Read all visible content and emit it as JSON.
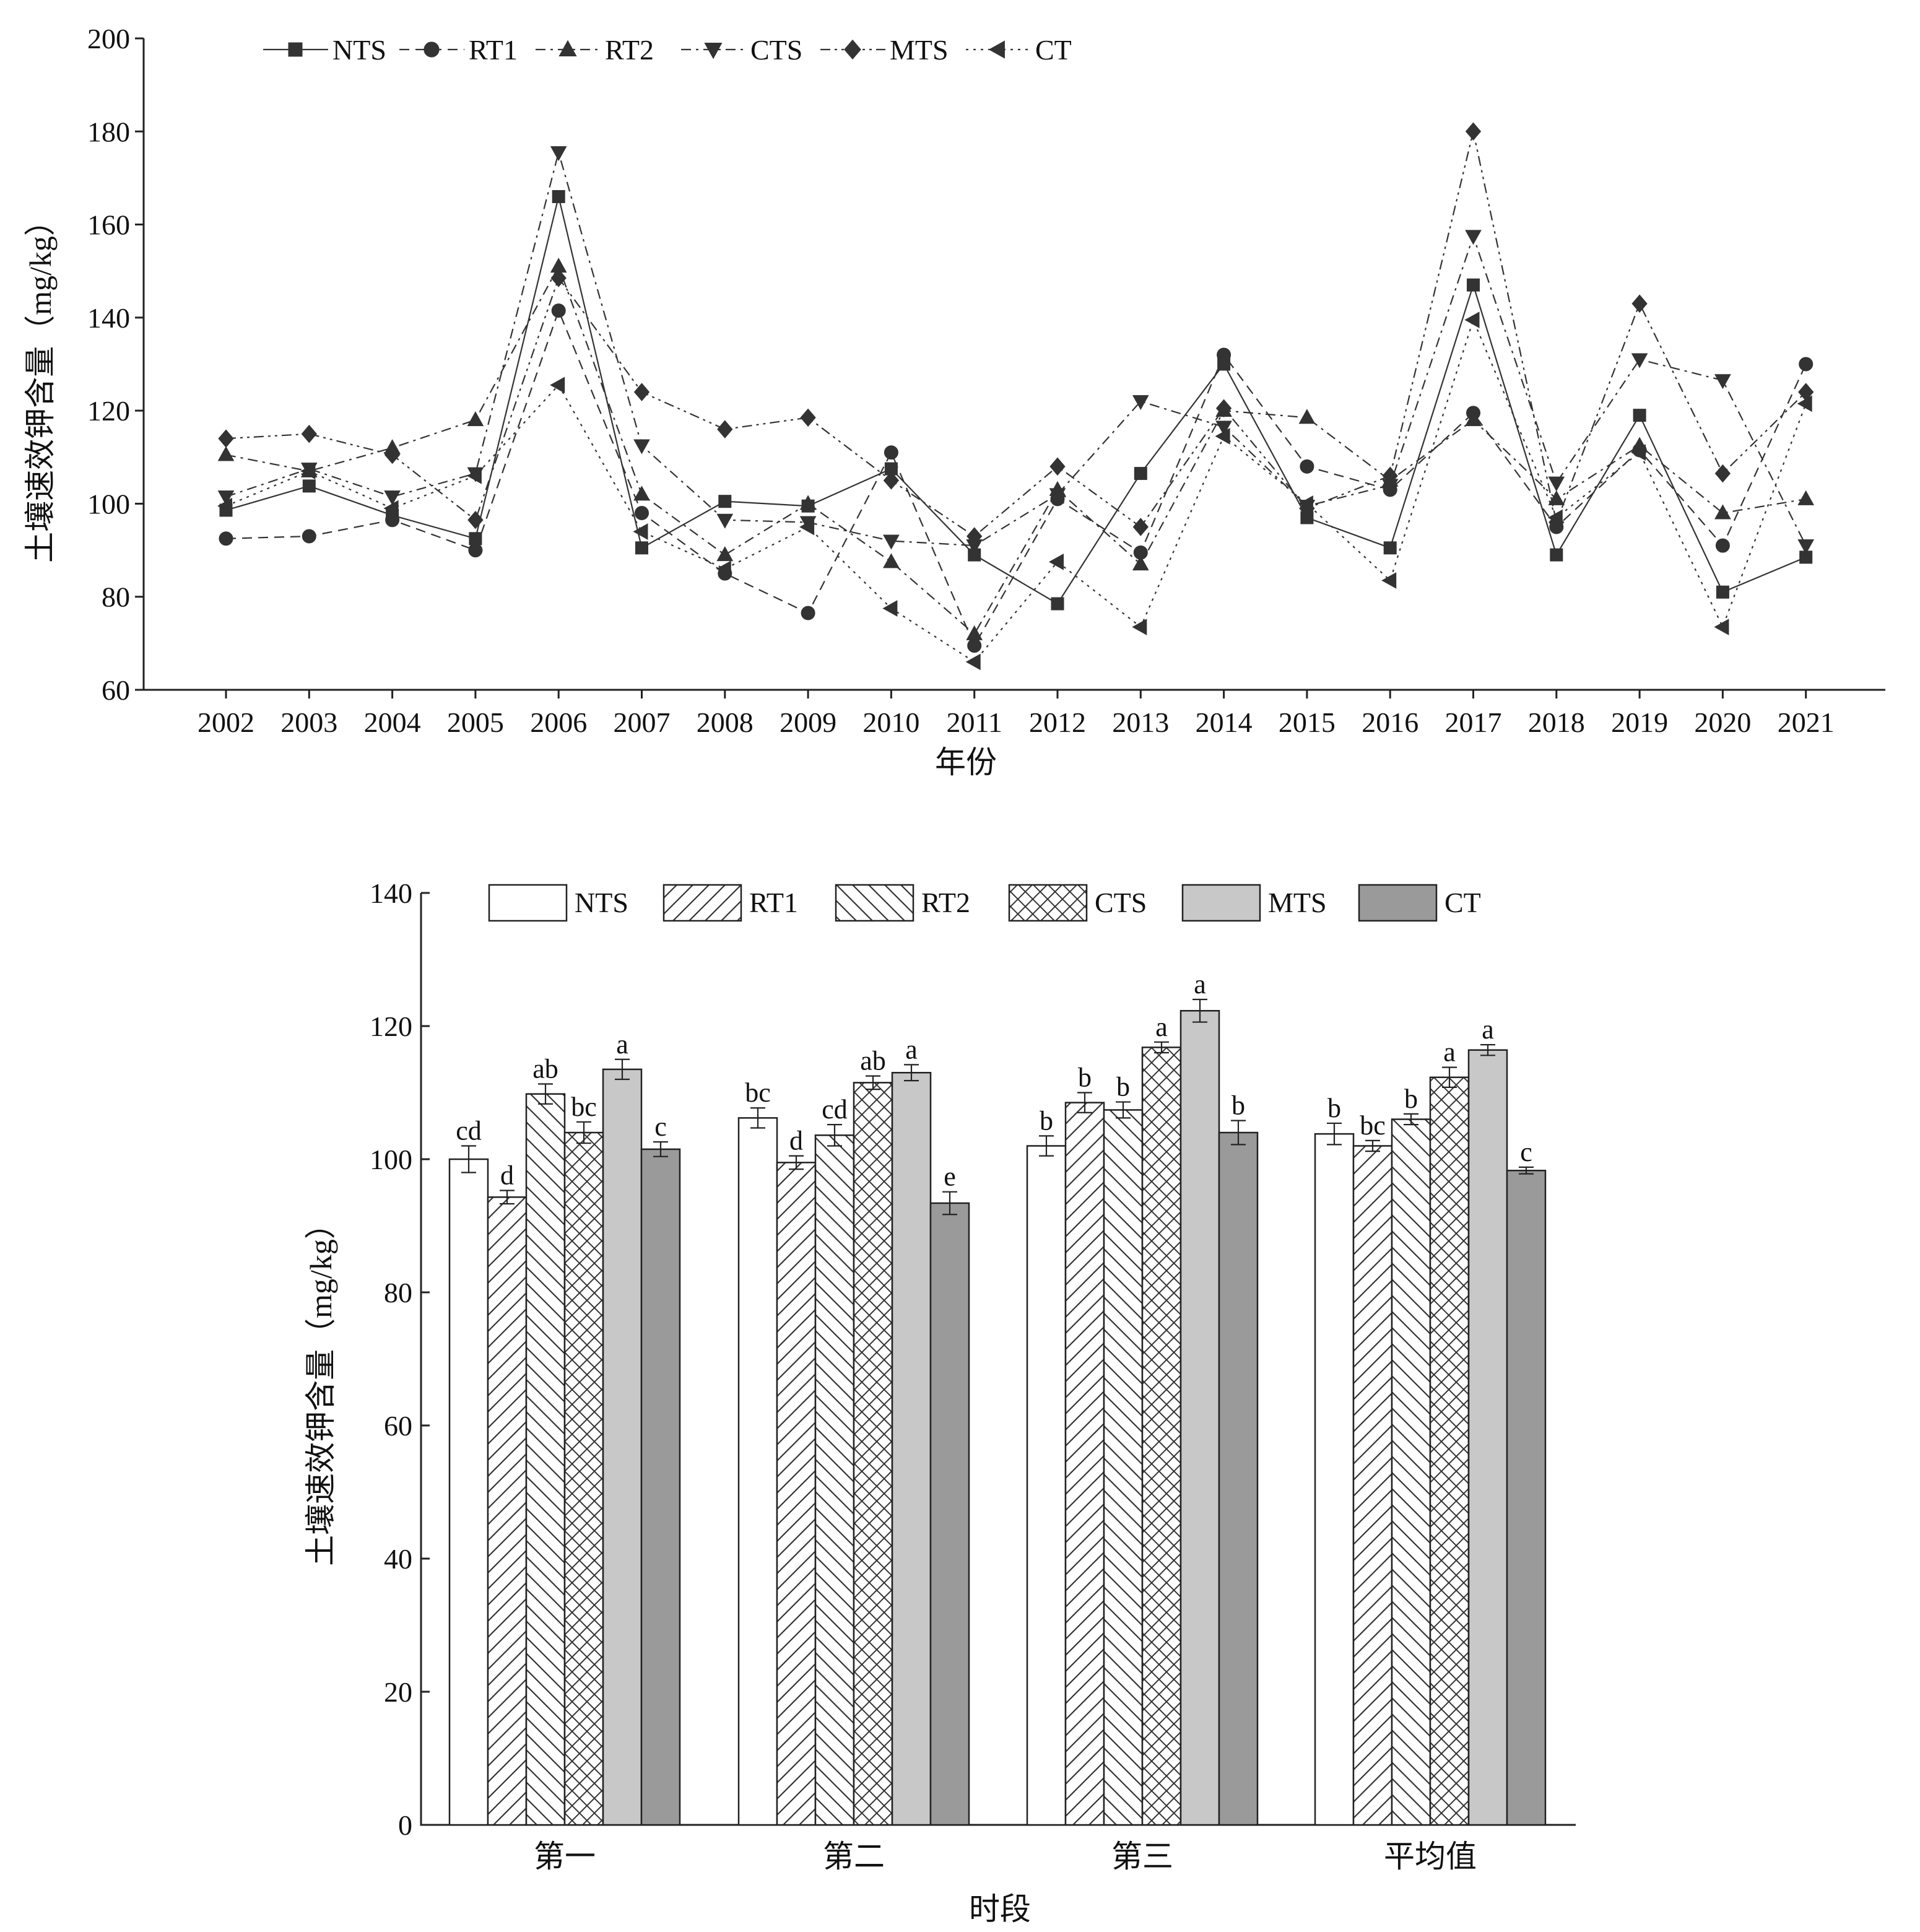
{
  "chart_data": [
    {
      "type": "line",
      "xlabel": "年份",
      "ylabel": "土壤速效钾含量（mg/kg）",
      "ylim": [
        60,
        200
      ],
      "yticks": [
        60,
        80,
        100,
        120,
        140,
        160,
        180,
        200
      ],
      "x": [
        "2002",
        "2003",
        "2004",
        "2005",
        "2006",
        "2007",
        "2008",
        "2009",
        "2010",
        "2011",
        "2012",
        "2013",
        "2014",
        "2015",
        "2016",
        "2017",
        "2018",
        "2019",
        "2020",
        "2021"
      ],
      "legend_position": "top-left",
      "series": [
        {
          "name": "NTS",
          "marker": "square",
          "dash": "solid",
          "values": [
            98.6,
            103.8,
            97.5,
            92.5,
            166.0,
            90.5,
            100.5,
            99.5,
            107.5,
            89.0,
            78.5,
            106.5,
            130.0,
            97.0,
            90.5,
            147.0,
            89.0,
            119.0,
            81.0,
            88.5
          ]
        },
        {
          "name": "RT1",
          "marker": "circle",
          "dash": "dash",
          "values": [
            92.5,
            93.0,
            96.5,
            90.0,
            141.5,
            98.0,
            85.0,
            76.5,
            111.0,
            69.5,
            101.0,
            89.5,
            132.0,
            108.0,
            103.0,
            119.5,
            95.0,
            111.5,
            91.0,
            130.0
          ]
        },
        {
          "name": "RT2",
          "marker": "triangle-up",
          "dash": "dashdot",
          "values": [
            110.5,
            107.0,
            112.0,
            118.0,
            151.0,
            102.0,
            89.0,
            100.0,
            87.5,
            72.0,
            103.0,
            87.0,
            120.0,
            118.5,
            105.0,
            118.0,
            101.0,
            112.5,
            98.0,
            101.0
          ]
        },
        {
          "name": "CTS",
          "marker": "triangle-down",
          "dash": "dashdot",
          "values": [
            101.5,
            107.5,
            101.5,
            106.5,
            175.5,
            112.5,
            96.5,
            96.0,
            92.0,
            91.0,
            102.0,
            122.0,
            116.5,
            99.5,
            104.0,
            157.5,
            104.5,
            131.0,
            126.5,
            91.0
          ]
        },
        {
          "name": "MTS",
          "marker": "diamond",
          "dash": "dashdotdot",
          "values": [
            114.0,
            115.0,
            110.5,
            96.5,
            148.5,
            124.0,
            116.0,
            118.5,
            105.0,
            93.0,
            108.0,
            95.0,
            120.5,
            99.0,
            106.0,
            180.0,
            96.0,
            143.0,
            106.5,
            124.0
          ]
        },
        {
          "name": "CT",
          "marker": "triangle-left",
          "dash": "dot",
          "values": [
            99.5,
            107.0,
            99.0,
            106.0,
            125.5,
            94.0,
            86.0,
            95.0,
            77.5,
            66.0,
            87.5,
            73.5,
            114.5,
            100.0,
            83.5,
            139.5,
            97.0,
            111.0,
            73.5,
            121.5
          ]
        }
      ]
    },
    {
      "type": "bar",
      "xlabel": "时段",
      "ylabel": "土壤速效钾含量（mg/kg）",
      "ylim": [
        0,
        140
      ],
      "yticks": [
        0,
        20,
        40,
        60,
        80,
        100,
        120,
        140
      ],
      "categories": [
        "第一",
        "第二",
        "第三",
        "平均值"
      ],
      "legend_position": "top",
      "series": [
        {
          "name": "NTS",
          "fill": "white",
          "values": [
            100.0,
            106.2,
            102.0,
            103.8
          ],
          "errors": [
            2.0,
            1.5,
            1.5,
            1.6
          ],
          "labels": [
            "cd",
            "bc",
            "b",
            "b"
          ]
        },
        {
          "name": "RT1",
          "fill": "hatch-forward",
          "values": [
            94.3,
            99.5,
            108.5,
            102.0
          ],
          "errors": [
            1.0,
            1.0,
            1.5,
            0.8
          ],
          "labels": [
            "d",
            "d",
            "b",
            "bc"
          ]
        },
        {
          "name": "RT2",
          "fill": "hatch-back",
          "values": [
            109.8,
            103.6,
            107.4,
            106.0
          ],
          "errors": [
            1.5,
            1.6,
            1.2,
            0.8
          ],
          "labels": [
            "ab",
            "cd",
            "b",
            "b"
          ]
        },
        {
          "name": "CTS",
          "fill": "crosshatch",
          "values": [
            104.0,
            111.5,
            116.8,
            112.3
          ],
          "errors": [
            1.6,
            1.0,
            0.8,
            1.5
          ],
          "labels": [
            "bc",
            "ab",
            "a",
            "a"
          ]
        },
        {
          "name": "MTS",
          "fill": "light-gray",
          "values": [
            113.5,
            113.0,
            122.3,
            116.4
          ],
          "errors": [
            1.5,
            1.2,
            1.7,
            0.8
          ],
          "labels": [
            "a",
            "a",
            "a",
            "a"
          ]
        },
        {
          "name": "CT",
          "fill": "dark-gray",
          "values": [
            101.5,
            93.4,
            104.0,
            98.3
          ],
          "errors": [
            1.1,
            1.7,
            1.8,
            0.5
          ],
          "labels": [
            "c",
            "e",
            "b",
            "c"
          ]
        }
      ]
    }
  ],
  "colors": {
    "axis": "#222222",
    "line_marker": "#333333",
    "bar_stroke": "#222222",
    "bar_light_gray": "#c8c8c8",
    "bar_dark_gray": "#9a9a9a",
    "bar_white": "#ffffff"
  }
}
